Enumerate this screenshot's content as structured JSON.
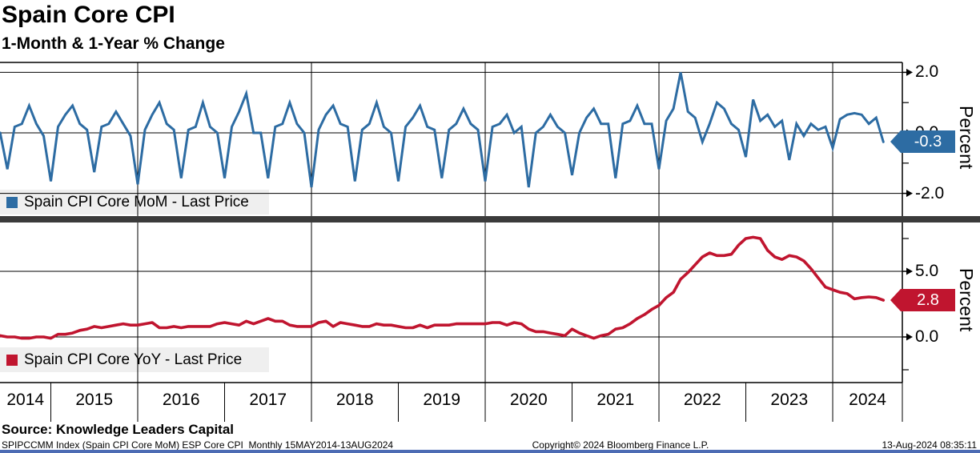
{
  "header": {
    "title": "Spain Core CPI",
    "subtitle": "1-Month & 1-Year % Change"
  },
  "panels": {
    "top": {
      "legend_label": "Spain CPI Core MoM - Last Price",
      "badge_value": "-0.3",
      "axis_label": "Percent"
    },
    "bottom": {
      "legend_label": "Spain CPI Core YoY - Last Price",
      "badge_value": "2.8",
      "axis_label": "Percent"
    }
  },
  "x_axis": {
    "years": [
      "2014",
      "2015",
      "2016",
      "2017",
      "2018",
      "2019",
      "2020",
      "2021",
      "2022",
      "2023",
      "2024"
    ]
  },
  "footer": {
    "source": "Source: Knowledge Leaders Capital",
    "ticker_info": "SPIPCCMM Index (Spain CPI Core MoM) ESP Core CPI  Monthly 15MAY2014-13AUG2024",
    "copyright": "Copyright© 2024 Bloomberg Finance L.P.",
    "timestamp": "13-Aug-2024 08:35:11"
  },
  "colors": {
    "mom_line": "#2d6ca3",
    "yoy_line": "#c0152f",
    "legend_bg": "#efefef",
    "grid": "#000000",
    "separator": "#3b3b3b",
    "badge_text": "#ffffff",
    "bottom_bar": "#4d6cb4"
  },
  "chart_data": [
    {
      "id": "mom",
      "type": "line",
      "name": "Spain CPI Core MoM - Last Price",
      "color": "#2d6ca3",
      "x_start": "2014-05",
      "x_end": "2024-08",
      "frequency": "monthly",
      "ylabel": "Percent",
      "ylim": [
        -2.8,
        2.3
      ],
      "last_price": -0.3,
      "yticks_major": [
        {
          "label": "2.0",
          "value": 2.0
        },
        {
          "label": "0.0",
          "value": 0.0
        },
        {
          "label": "-2.0",
          "value": -2.0
        }
      ],
      "yticks_minor": [
        1.0,
        -1.0
      ],
      "gridlines_y": [
        2.0,
        0.0,
        -2.0
      ],
      "values": [
        0.1,
        0.0,
        -1.2,
        0.2,
        0.3,
        0.9,
        0.3,
        -0.1,
        -1.6,
        0.2,
        0.6,
        0.9,
        0.3,
        0.1,
        -1.3,
        0.2,
        0.3,
        0.7,
        0.3,
        -0.1,
        -1.7,
        0.1,
        0.6,
        1.0,
        0.3,
        0.1,
        -1.5,
        0.1,
        0.2,
        1.0,
        0.2,
        0.0,
        -1.5,
        0.2,
        0.7,
        1.3,
        0.0,
        0.0,
        -1.5,
        0.2,
        0.3,
        1.0,
        0.3,
        0.0,
        -1.8,
        0.1,
        0.6,
        0.9,
        0.3,
        0.2,
        -1.6,
        0.1,
        0.3,
        1.0,
        0.2,
        0.0,
        -1.6,
        0.2,
        0.5,
        0.9,
        0.2,
        0.1,
        -1.5,
        0.1,
        0.3,
        0.8,
        0.3,
        0.1,
        -1.6,
        0.2,
        0.3,
        0.6,
        0.0,
        0.2,
        -1.8,
        0.0,
        0.2,
        0.6,
        0.2,
        0.0,
        -1.4,
        0.0,
        0.5,
        0.8,
        0.3,
        0.3,
        -1.5,
        0.3,
        0.4,
        0.9,
        0.3,
        0.3,
        -1.2,
        0.4,
        0.8,
        2.0,
        0.7,
        0.5,
        -0.3,
        0.3,
        1.0,
        0.8,
        0.3,
        0.1,
        -0.8,
        1.1,
        0.4,
        0.6,
        0.2,
        0.4,
        -0.9,
        0.3,
        -0.1,
        0.3,
        0.1,
        0.2,
        -0.5,
        0.45,
        0.6,
        0.65,
        0.6,
        0.3,
        0.5,
        -0.3
      ]
    },
    {
      "id": "yoy",
      "type": "line",
      "name": "Spain CPI Core YoY - Last Price",
      "color": "#c0152f",
      "x_start": "2014-05",
      "x_end": "2024-08",
      "frequency": "monthly",
      "ylabel": "Percent",
      "ylim": [
        -3.5,
        8.7
      ],
      "last_price": 2.8,
      "yticks_major": [
        {
          "label": "5.0",
          "value": 5.0
        },
        {
          "label": "0.0",
          "value": 0.0
        }
      ],
      "yticks_minor": [
        7.5,
        2.5,
        -2.5
      ],
      "gridlines_y": [
        5.0,
        0.0
      ],
      "values": [
        0.1,
        0.1,
        0.0,
        0.0,
        -0.1,
        -0.1,
        0.0,
        0.0,
        -0.1,
        0.2,
        0.2,
        0.3,
        0.5,
        0.6,
        0.8,
        0.7,
        0.8,
        0.9,
        1.0,
        0.9,
        0.9,
        1.0,
        1.1,
        0.7,
        0.7,
        0.8,
        0.7,
        0.8,
        0.8,
        0.8,
        0.8,
        1.0,
        1.1,
        1.0,
        0.9,
        1.2,
        1.0,
        1.2,
        1.4,
        1.2,
        1.2,
        0.9,
        0.8,
        0.8,
        0.8,
        1.1,
        1.2,
        0.8,
        1.1,
        1.0,
        0.9,
        0.8,
        0.8,
        1.0,
        0.9,
        0.9,
        0.8,
        0.7,
        0.7,
        0.9,
        0.7,
        0.9,
        0.9,
        0.9,
        1.0,
        1.0,
        1.0,
        1.0,
        1.0,
        1.1,
        1.1,
        0.9,
        1.1,
        1.0,
        0.6,
        0.4,
        0.4,
        0.3,
        0.2,
        0.1,
        0.6,
        0.3,
        0.1,
        -0.1,
        0.1,
        0.2,
        0.6,
        0.7,
        1.0,
        1.4,
        1.7,
        2.1,
        2.4,
        3.0,
        3.4,
        4.4,
        4.9,
        5.5,
        6.1,
        6.4,
        6.2,
        6.2,
        6.3,
        7.0,
        7.5,
        7.6,
        7.5,
        6.6,
        6.1,
        5.9,
        6.2,
        6.1,
        5.8,
        5.2,
        4.5,
        3.8,
        3.6,
        3.4,
        3.3,
        2.9,
        3.0,
        3.05,
        3.0,
        2.8
      ]
    }
  ],
  "x_gridline_years": [
    2016,
    2018,
    2020,
    2022,
    2024
  ]
}
